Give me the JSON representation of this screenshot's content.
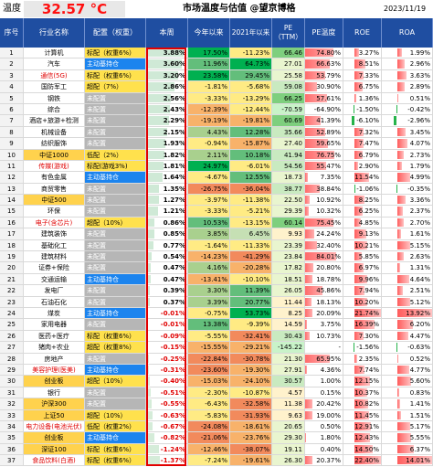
{
  "topbar": {
    "label": "温度",
    "temperature": "32.57",
    "unit": "°C",
    "title": "市场温度与估值 @望京博格",
    "date": "2023/11/19"
  },
  "headers": [
    "序号",
    "行业名称",
    "配置（权重）",
    "本周",
    "今年以来",
    "2021年以来",
    "PE（TTM）",
    "PE温度",
    "ROE",
    "ROA"
  ],
  "rows": [
    {
      "no": "1",
      "ind": "计算机",
      "ind_hl": false,
      "cfg": "标配（权重6%）",
      "cfg_bg": "bg-yellow",
      "week": "3.88%",
      "week_pct": 0.92,
      "ytd": "17.50%",
      "since21": "-11.23%",
      "pe": "66.46",
      "pe_t": "74.80%",
      "pe_t_pct": 0.75,
      "roe": "3.27%",
      "roe_pct": 0.16,
      "roe_neg": false,
      "roa": "1.99%",
      "roa_pct": 0.14,
      "roa_neg": false
    },
    {
      "no": "2",
      "ind": "汽车",
      "ind_hl": false,
      "cfg": "主动基持仓",
      "cfg_bg": "bg-blue",
      "week": "3.60%",
      "week_pct": 0.86,
      "ytd": "11.96%",
      "since21": "64.73%",
      "pe": "27.01",
      "pe_t": "66.63%",
      "pe_t_pct": 0.67,
      "roe": "8.51%",
      "roe_pct": 0.4,
      "roe_neg": false,
      "roa": "2.96%",
      "roa_pct": 0.22,
      "roa_neg": false
    },
    {
      "no": "3",
      "ind": "通信(5G)",
      "ind_hl": false,
      "ind_red": "(5G)",
      "cfg": "标配（权重6%）",
      "cfg_bg": "bg-yellow",
      "week": "3.20%",
      "week_pct": 0.77,
      "ytd": "23.58%",
      "since21": "29.45%",
      "pe": "25.58",
      "pe_t": "53.79%",
      "pe_t_pct": 0.54,
      "roe": "7.33%",
      "roe_pct": 0.35,
      "roe_neg": false,
      "roa": "3.63%",
      "roa_pct": 0.26,
      "roa_neg": false
    },
    {
      "no": "4",
      "ind": "国防军工",
      "ind_hl": false,
      "cfg": "超配（7%）",
      "cfg_bg": "bg-yellow",
      "week": "2.86%",
      "week_pct": 0.68,
      "ytd": "-1.81%",
      "since21": "-5.68%",
      "pe": "59.08",
      "pe_t": "30.90%",
      "pe_t_pct": 0.31,
      "roe": "6.75%",
      "roe_pct": 0.32,
      "roe_neg": false,
      "roa": "2.89%",
      "roa_pct": 0.21,
      "roa_neg": false
    },
    {
      "no": "5",
      "ind": "钢铁",
      "ind_hl": false,
      "cfg": "未配置",
      "cfg_bg": "bg-gray",
      "week": "2.56%",
      "week_pct": 0.61,
      "ytd": "-3.33%",
      "since21": "-13.29%",
      "pe": "66.25",
      "pe_t": "57.61%",
      "pe_t_pct": 0.58,
      "roe": "1.36%",
      "roe_pct": 0.06,
      "roe_neg": false,
      "roa": "0.51%",
      "roa_pct": 0.04,
      "roa_neg": false
    },
    {
      "no": "6",
      "ind": "综合",
      "ind_hl": false,
      "cfg": "未配置",
      "cfg_bg": "bg-gray",
      "week": "2.43%",
      "week_pct": 0.58,
      "ytd": "-12.39%",
      "since21": "-12.44%",
      "pe": "-70.59",
      "pe_t": "-64.90%",
      "pe_t_pct": 0.0,
      "roe": "-1.50%",
      "roe_pct": 0.08,
      "roe_neg": true,
      "roa": "-0.42%",
      "roa_pct": 0.03,
      "roa_neg": true
    },
    {
      "no": "7",
      "ind": "酒店+旅游+检测",
      "ind_hl": false,
      "cfg": "未配置",
      "cfg_bg": "bg-gray",
      "week": "2.29%",
      "week_pct": 0.55,
      "ytd": "-19.19%",
      "since21": "-19.81%",
      "pe": "60.69",
      "pe_t": "41.39%",
      "pe_t_pct": 0.41,
      "roe": "-6.10%",
      "roe_pct": 0.28,
      "roe_neg": true,
      "roa": "-2.96%",
      "roa_pct": 0.22,
      "roa_neg": true
    },
    {
      "no": "8",
      "ind": "机械设备",
      "ind_hl": false,
      "cfg": "未配置",
      "cfg_bg": "bg-gray",
      "week": "2.15%",
      "week_pct": 0.51,
      "ytd": "4.43%",
      "since21": "12.28%",
      "pe": "35.66",
      "pe_t": "52.89%",
      "pe_t_pct": 0.53,
      "roe": "7.32%",
      "roe_pct": 0.35,
      "roe_neg": false,
      "roa": "3.45%",
      "roa_pct": 0.25,
      "roa_neg": false
    },
    {
      "no": "9",
      "ind": "纺织服饰",
      "ind_hl": false,
      "cfg": "未配置",
      "cfg_bg": "bg-gray",
      "week": "1.93%",
      "week_pct": 0.46,
      "ytd": "-0.94%",
      "since21": "-15.87%",
      "pe": "27.40",
      "pe_t": "59.65%",
      "pe_t_pct": 0.6,
      "roe": "7.47%",
      "roe_pct": 0.35,
      "roe_neg": false,
      "roa": "4.07%",
      "roa_pct": 0.3,
      "roa_neg": false
    },
    {
      "no": "10",
      "ind": "中证1000",
      "ind_hl": true,
      "cfg": "低配（2%）",
      "cfg_bg": "bg-yellow",
      "week": "1.82%",
      "week_pct": 0.44,
      "ytd": "2.11%",
      "since21": "10.18%",
      "pe": "41.94",
      "pe_t": "76.75%",
      "pe_t_pct": 0.77,
      "roe": "6.79%",
      "roe_pct": 0.32,
      "roe_neg": false,
      "roa": "2.73%",
      "roa_pct": 0.2,
      "roa_neg": false
    },
    {
      "no": "11",
      "ind": "传媒(游戏)",
      "ind_hl": false,
      "ind_red": "(游戏)",
      "cfg": "标配(游戏3%)",
      "cfg_bg": "bg-yellow",
      "week": "1.81%",
      "week_pct": 0.43,
      "ytd": "24.97%",
      "since21": "-6.01%",
      "pe": "54.56",
      "pe_t": "55.47%",
      "pe_t_pct": 0.55,
      "roe": "2.90%",
      "roe_pct": 0.14,
      "roe_neg": false,
      "roa": "1.79%",
      "roa_pct": 0.13,
      "roa_neg": false
    },
    {
      "no": "12",
      "ind": "有色金属",
      "ind_hl": false,
      "cfg": "主动基持仓",
      "cfg_bg": "bg-blue",
      "week": "1.64%",
      "week_pct": 0.39,
      "ytd": "-4.67%",
      "since21": "12.55%",
      "pe": "18.73",
      "pe_t": "7.35%",
      "pe_t_pct": 0.07,
      "roe": "11.54%",
      "roe_pct": 0.55,
      "roe_neg": false,
      "roa": "4.99%",
      "roa_pct": 0.37,
      "roa_neg": false
    },
    {
      "no": "13",
      "ind": "商贸零售",
      "ind_hl": false,
      "cfg": "未配置",
      "cfg_bg": "bg-gray",
      "week": "1.35%",
      "week_pct": 0.32,
      "ytd": "-26.75%",
      "since21": "-36.04%",
      "pe": "38.77",
      "pe_t": "38.84%",
      "pe_t_pct": 0.39,
      "roe": "-1.06%",
      "roe_pct": 0.05,
      "roe_neg": true,
      "roa": "-0.35%",
      "roa_pct": 0.03,
      "roa_neg": true
    },
    {
      "no": "14",
      "ind": "中证500",
      "ind_hl": true,
      "cfg": "未配置",
      "cfg_bg": "bg-gray",
      "week": "1.27%",
      "week_pct": 0.3,
      "ytd": "-3.97%",
      "since21": "-11.38%",
      "pe": "22.50",
      "pe_t": "10.92%",
      "pe_t_pct": 0.11,
      "roe": "8.25%",
      "roe_pct": 0.39,
      "roe_neg": false,
      "roa": "3.36%",
      "roa_pct": 0.25,
      "roa_neg": false
    },
    {
      "no": "15",
      "ind": "环保",
      "ind_hl": false,
      "cfg": "未配置",
      "cfg_bg": "bg-gray",
      "week": "1.21%",
      "week_pct": 0.29,
      "ytd": "-3.33%",
      "since21": "-5.21%",
      "pe": "29.39",
      "pe_t": "10.32%",
      "pe_t_pct": 0.1,
      "roe": "6.25%",
      "roe_pct": 0.3,
      "roe_neg": false,
      "roa": "2.37%",
      "roa_pct": 0.17,
      "roa_neg": false
    },
    {
      "no": "16",
      "ind": "电子(含芯片)",
      "ind_hl": false,
      "ind_red": "(含芯片)",
      "cfg": "超配（10%）",
      "cfg_bg": "bg-yellow",
      "week": "0.86%",
      "week_pct": 0.2,
      "ytd": "10.53%",
      "since21": "-13.15%",
      "pe": "60.14",
      "pe_t": "75.45%",
      "pe_t_pct": 0.75,
      "roe": "4.85%",
      "roe_pct": 0.23,
      "roe_neg": false,
      "roa": "2.70%",
      "roa_pct": 0.2,
      "roa_neg": false
    },
    {
      "no": "17",
      "ind": "建筑装饰",
      "ind_hl": false,
      "cfg": "未配置",
      "cfg_bg": "bg-gray",
      "week": "0.85%",
      "week_pct": 0.2,
      "ytd": "3.85%",
      "since21": "6.45%",
      "pe": "9.93",
      "pe_t": "24.24%",
      "pe_t_pct": 0.24,
      "roe": "9.13%",
      "roe_pct": 0.43,
      "roe_neg": false,
      "roa": "1.61%",
      "roa_pct": 0.12,
      "roa_neg": false
    },
    {
      "no": "18",
      "ind": "基础化工",
      "ind_hl": false,
      "cfg": "未配置",
      "cfg_bg": "bg-gray",
      "week": "0.77%",
      "week_pct": 0.18,
      "ytd": "-1.64%",
      "since21": "-11.33%",
      "pe": "23.39",
      "pe_t": "32.40%",
      "pe_t_pct": 0.32,
      "roe": "10.21%",
      "roe_pct": 0.48,
      "roe_neg": false,
      "roa": "5.15%",
      "roa_pct": 0.38,
      "roa_neg": false
    },
    {
      "no": "19",
      "ind": "建筑材料",
      "ind_hl": false,
      "cfg": "未配置",
      "cfg_bg": "bg-gray",
      "week": "0.54%",
      "week_pct": 0.13,
      "ytd": "-14.23%",
      "since21": "-41.29%",
      "pe": "23.84",
      "pe_t": "84.01%",
      "pe_t_pct": 0.84,
      "roe": "5.85%",
      "roe_pct": 0.28,
      "roe_neg": false,
      "roa": "2.63%",
      "roa_pct": 0.19,
      "roa_neg": false
    },
    {
      "no": "20",
      "ind": "证券+保险",
      "ind_hl": false,
      "cfg": "未配置",
      "cfg_bg": "bg-gray",
      "week": "0.47%",
      "week_pct": 0.11,
      "ytd": "4.16%",
      "since21": "-20.28%",
      "pe": "17.82",
      "pe_t": "20.80%",
      "pe_t_pct": 0.21,
      "roe": "6.97%",
      "roe_pct": 0.33,
      "roe_neg": false,
      "roa": "1.31%",
      "roa_pct": 0.1,
      "roa_neg": false
    },
    {
      "no": "21",
      "ind": "交通运输",
      "ind_hl": false,
      "cfg": "主动基持仓",
      "cfg_bg": "bg-blue",
      "week": "0.47%",
      "week_pct": 0.11,
      "ytd": "-13.41%",
      "since21": "-10.10%",
      "pe": "18.51",
      "pe_t": "18.78%",
      "pe_t_pct": 0.19,
      "roe": "9.96%",
      "roe_pct": 0.47,
      "roe_neg": false,
      "roa": "4.64%",
      "roa_pct": 0.34,
      "roa_neg": false
    },
    {
      "no": "22",
      "ind": "发电厂",
      "ind_hl": false,
      "cfg": "未配置",
      "cfg_bg": "bg-gray",
      "week": "0.39%",
      "week_pct": 0.09,
      "ytd": "3.30%",
      "since21": "11.39%",
      "pe": "26.05",
      "pe_t": "45.86%",
      "pe_t_pct": 0.46,
      "roe": "7.94%",
      "roe_pct": 0.37,
      "roe_neg": false,
      "roa": "2.51%",
      "roa_pct": 0.18,
      "roa_neg": false
    },
    {
      "no": "23",
      "ind": "石油石化",
      "ind_hl": false,
      "cfg": "未配置",
      "cfg_bg": "bg-gray",
      "week": "0.37%",
      "week_pct": 0.09,
      "ytd": "3.39%",
      "since21": "20.77%",
      "pe": "11.44",
      "pe_t": "18.13%",
      "pe_t_pct": 0.18,
      "roe": "10.20%",
      "roe_pct": 0.48,
      "roe_neg": false,
      "roa": "5.12%",
      "roa_pct": 0.38,
      "roa_neg": false
    },
    {
      "no": "24",
      "ind": "煤炭",
      "ind_hl": false,
      "cfg": "主动基持仓",
      "cfg_bg": "bg-blue",
      "week": "-0.01%",
      "week_pct": 0.01,
      "ytd": "-0.75%",
      "since21": "53.73%",
      "pe": "8.25",
      "pe_t": "20.09%",
      "pe_t_pct": 0.2,
      "roe": "21.74%",
      "roe_pct": 1.0,
      "roe_neg": false,
      "roa": "13.92%",
      "roa_pct": 1.0,
      "roa_neg": false
    },
    {
      "no": "25",
      "ind": "家用电器",
      "ind_hl": false,
      "cfg": "未配置",
      "cfg_bg": "bg-gray",
      "week": "-0.01%",
      "week_pct": 0.01,
      "ytd": "13.38%",
      "since21": "-9.39%",
      "pe": "14.59",
      "pe_t": "3.75%",
      "pe_t_pct": 0.04,
      "roe": "16.39%",
      "roe_pct": 0.77,
      "roe_neg": false,
      "roa": "6.20%",
      "roa_pct": 0.46,
      "roa_neg": false
    },
    {
      "no": "26",
      "ind": "医药+医疗",
      "ind_hl": false,
      "cfg": "标配（权重6%）",
      "cfg_bg": "bg-yellow",
      "week": "-0.09%",
      "week_pct": 0.02,
      "ytd": "-5.55%",
      "since21": "-32.41%",
      "pe": "30.43",
      "pe_t": "10.73%",
      "pe_t_pct": 0.11,
      "roe": "7.30%",
      "roe_pct": 0.34,
      "roe_neg": false,
      "roa": "4.47%",
      "roa_pct": 0.33,
      "roa_neg": false
    },
    {
      "no": "27",
      "ind": "猪肉+农业",
      "ind_hl": false,
      "cfg": "超配（权重8%）",
      "cfg_bg": "bg-yellow",
      "week": "-0.15%",
      "week_pct": 0.04,
      "ytd": "-15.55%",
      "since21": "-29.21%",
      "pe": "-145.22",
      "pe_t": "-",
      "pe_t_pct": 0.0,
      "roe": "-1.56%",
      "roe_pct": 0.07,
      "roe_neg": true,
      "roa": "-0.63%",
      "roa_pct": 0.05,
      "roa_neg": true
    },
    {
      "no": "28",
      "ind": "房地产",
      "ind_hl": false,
      "cfg": "未配置",
      "cfg_bg": "bg-gray",
      "week": "-0.25%",
      "week_pct": 0.06,
      "ytd": "-22.84%",
      "since21": "-30.78%",
      "pe": "21.30",
      "pe_t": "65.95%",
      "pe_t_pct": 0.66,
      "roe": "2.35%",
      "roe_pct": 0.11,
      "roe_neg": false,
      "roa": "0.52%",
      "roa_pct": 0.04,
      "roa_neg": false
    },
    {
      "no": "29",
      "ind": "美容护理(医美)",
      "ind_hl": false,
      "ind_red": "(医美)",
      "cfg": "主动基持仓",
      "cfg_bg": "bg-blue",
      "week": "-0.31%",
      "week_pct": 0.07,
      "ytd": "-23.60%",
      "since21": "-19.30%",
      "pe": "27.91",
      "pe_t": "4.36%",
      "pe_t_pct": 0.04,
      "roe": "7.74%",
      "roe_pct": 0.36,
      "roe_neg": false,
      "roa": "4.77%",
      "roa_pct": 0.35,
      "roa_neg": false
    },
    {
      "no": "30",
      "ind": "创业板",
      "ind_hl": true,
      "cfg": "超配（10%）",
      "cfg_bg": "bg-yellow",
      "week": "-0.40%",
      "week_pct": 0.09,
      "ytd": "-15.03%",
      "since21": "-24.10%",
      "pe": "30.57",
      "pe_t": "1.00%",
      "pe_t_pct": 0.01,
      "roe": "12.15%",
      "roe_pct": 0.57,
      "roe_neg": false,
      "roa": "5.60%",
      "roa_pct": 0.41,
      "roa_neg": false
    },
    {
      "no": "31",
      "ind": "银行",
      "ind_hl": false,
      "cfg": "未配置",
      "cfg_bg": "bg-gray",
      "week": "-0.51%",
      "week_pct": 0.12,
      "ytd": "-2.30%",
      "since21": "-10.87%",
      "pe": "4.57",
      "pe_t": "0.15%",
      "pe_t_pct": 0.01,
      "roe": "10.37%",
      "roe_pct": 0.49,
      "roe_neg": false,
      "roa": "0.83%",
      "roa_pct": 0.06,
      "roa_neg": false
    },
    {
      "no": "32",
      "ind": "沪深300",
      "ind_hl": true,
      "cfg": "未配置",
      "cfg_bg": "bg-gray",
      "week": "-0.55%",
      "week_pct": 0.13,
      "ytd": "-6.43%",
      "since21": "-32.58%",
      "pe": "11.38",
      "pe_t": "20.42%",
      "pe_t_pct": 0.2,
      "roe": "10.82%",
      "roe_pct": 0.51,
      "roe_neg": false,
      "roa": "1.41%",
      "roa_pct": 0.1,
      "roa_neg": false
    },
    {
      "no": "33",
      "ind": "上证50",
      "ind_hl": true,
      "cfg": "超配（10%）",
      "cfg_bg": "bg-yellow",
      "week": "-0.63%",
      "week_pct": 0.15,
      "ytd": "-5.83%",
      "since21": "-31.93%",
      "pe": "9.63",
      "pe_t": "19.00%",
      "pe_t_pct": 0.19,
      "roe": "11.45%",
      "roe_pct": 0.54,
      "roe_neg": false,
      "roa": "1.51%",
      "roa_pct": 0.11,
      "roa_neg": false
    },
    {
      "no": "34",
      "ind": "电力设备(电池光伏)",
      "ind_hl": false,
      "ind_red": "(电池光伏)",
      "cfg": "低配（权重2%）",
      "cfg_bg": "bg-yellow",
      "week": "-0.67%",
      "week_pct": 0.16,
      "ytd": "-24.08%",
      "since21": "-18.61%",
      "pe": "20.65",
      "pe_t": "0.50%",
      "pe_t_pct": 0.01,
      "roe": "12.91%",
      "roe_pct": 0.61,
      "roe_neg": false,
      "roa": "5.17%",
      "roa_pct": 0.38,
      "roa_neg": false
    },
    {
      "no": "35",
      "ind": "创业板",
      "ind_hl": true,
      "cfg": "主动基持仓",
      "cfg_bg": "bg-blue",
      "week": "-0.82%",
      "week_pct": 0.19,
      "ytd": "-21.06%",
      "since21": "-23.76%",
      "pe": "29.30",
      "pe_t": "1.80%",
      "pe_t_pct": 0.02,
      "roe": "12.43%",
      "roe_pct": 0.58,
      "roe_neg": false,
      "roa": "5.55%",
      "roa_pct": 0.41,
      "roa_neg": false
    },
    {
      "no": "36",
      "ind": "深证100",
      "ind_hl": true,
      "cfg": "标配（权重6%）",
      "cfg_bg": "bg-yellow",
      "week": "-1.24%",
      "week_pct": 0.3,
      "ytd": "-12.46%",
      "since21": "-38.07%",
      "pe": "19.11",
      "pe_t": "0.40%",
      "pe_t_pct": 0.01,
      "roe": "14.50%",
      "roe_pct": 0.68,
      "roe_neg": false,
      "roa": "6.37%",
      "roa_pct": 0.47,
      "roa_neg": false
    },
    {
      "no": "37",
      "ind": "食品饮料(白酒)",
      "ind_hl": false,
      "ind_red": "(白酒)",
      "cfg": "标配（权重6%）",
      "cfg_bg": "bg-yellow",
      "week": "-1.37%",
      "week_pct": 0.33,
      "ytd": "-7.24%",
      "since21": "-19.61%",
      "pe": "26.30",
      "pe_t": "20.37%",
      "pe_t_pct": 0.2,
      "roe": "22.40%",
      "roe_pct": 1.0,
      "roe_neg": false,
      "roa": "14.01%",
      "roa_pct": 1.0,
      "roa_neg": false
    }
  ]
}
